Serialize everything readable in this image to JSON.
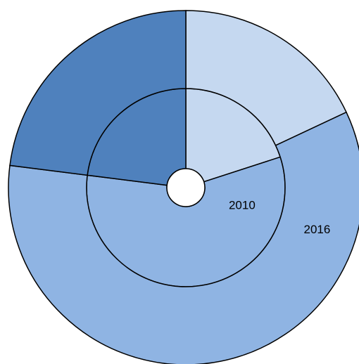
{
  "chart_data": {
    "type": "pie",
    "series": [
      {
        "name": "2010",
        "values": [
          20,
          57,
          23
        ]
      },
      {
        "name": "2016",
        "values": [
          18,
          59,
          23
        ]
      }
    ],
    "colors": [
      "#c5d8f0",
      "#8fb4e3",
      "#4f81bd"
    ]
  }
}
